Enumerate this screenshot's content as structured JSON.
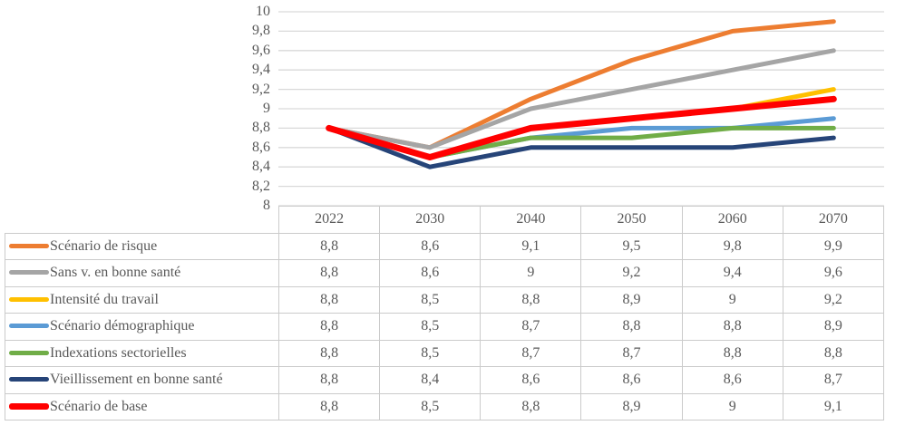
{
  "figure": {
    "kind": "line chart with attached data table",
    "background": "#FFFFFF"
  },
  "colors": {
    "gridline": "#D9D9D9",
    "table_border": "#CBCBCB",
    "text": "#595959"
  },
  "chart_data": {
    "type": "line",
    "title": "",
    "xlabel": "",
    "ylabel": "",
    "categories": [
      "2022",
      "2030",
      "2040",
      "2050",
      "2060",
      "2070"
    ],
    "series": [
      {
        "id": "scenario-de-risque",
        "name": "Scénario de risque",
        "color": "#ED7D31",
        "line_width": 5,
        "values": [
          8.8,
          8.6,
          9.1,
          9.5,
          9.8,
          9.9
        ]
      },
      {
        "id": "sans-v-en-bonne-sante",
        "name": "Sans v. en bonne santé",
        "color": "#A5A5A5",
        "line_width": 5,
        "values": [
          8.8,
          8.6,
          9,
          9.2,
          9.4,
          9.6
        ]
      },
      {
        "id": "intensite-du-travail",
        "name": "Intensité du travail",
        "color": "#FFC000",
        "line_width": 5,
        "values": [
          8.8,
          8.5,
          8.8,
          8.9,
          9,
          9.2
        ]
      },
      {
        "id": "scenario-demographique",
        "name": "Scénario démographique",
        "color": "#5B9BD5",
        "line_width": 5,
        "values": [
          8.8,
          8.5,
          8.7,
          8.8,
          8.8,
          8.9
        ]
      },
      {
        "id": "indexations-sectorielles",
        "name": "Indexations sectorielles",
        "color": "#70AD47",
        "line_width": 5,
        "values": [
          8.8,
          8.5,
          8.7,
          8.7,
          8.8,
          8.8
        ]
      },
      {
        "id": "vieillissement-en-bonne-sante",
        "name": "Vieillissement en bonne santé",
        "color": "#264478",
        "line_width": 5,
        "values": [
          8.8,
          8.4,
          8.6,
          8.6,
          8.6,
          8.7
        ]
      },
      {
        "id": "scenario-de-base",
        "name": "Scénario de base",
        "color": "#FF0000",
        "line_width": 7,
        "values": [
          8.8,
          8.5,
          8.8,
          8.9,
          9,
          9.1
        ]
      }
    ],
    "ylim": [
      8,
      10
    ],
    "ytick_step": 0.2,
    "ytick_labels": [
      "10",
      "9,8",
      "9,6",
      "9,4",
      "9,2",
      "9",
      "8,8",
      "8,6",
      "8,4",
      "8,2",
      "8"
    ],
    "decimal_separator": ",",
    "grid": true,
    "legend_position": "table-left-column"
  }
}
